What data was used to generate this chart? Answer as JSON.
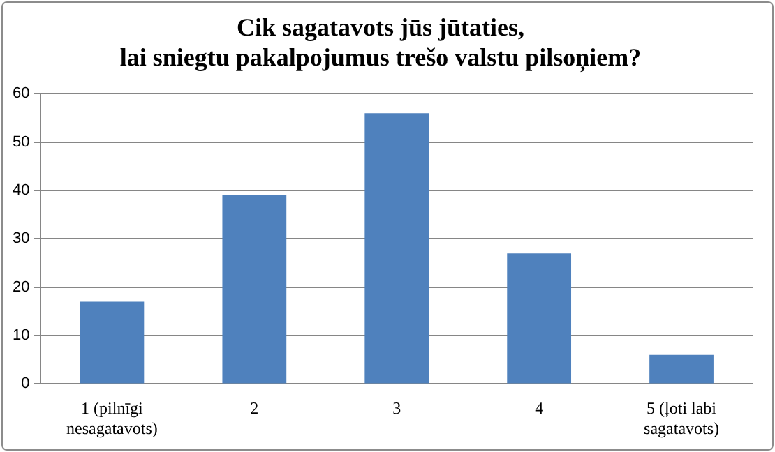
{
  "chart_data": {
    "type": "bar",
    "title": "Cik sagatavots jūs jūtaties, lai sniegtu pakalpojumus trešo valstu pilsoņiem?",
    "categories": [
      "1 (pilnīgi nesagatavots)",
      "2",
      "3",
      "4",
      "5 (ļoti labi sagatavots)"
    ],
    "values": [
      17,
      39,
      56,
      27,
      6
    ],
    "color": "#4f81bd",
    "ylim": [
      0,
      60
    ],
    "yticks": [
      0,
      10,
      20,
      30,
      40,
      50,
      60
    ],
    "grid": "y",
    "legend": false
  }
}
